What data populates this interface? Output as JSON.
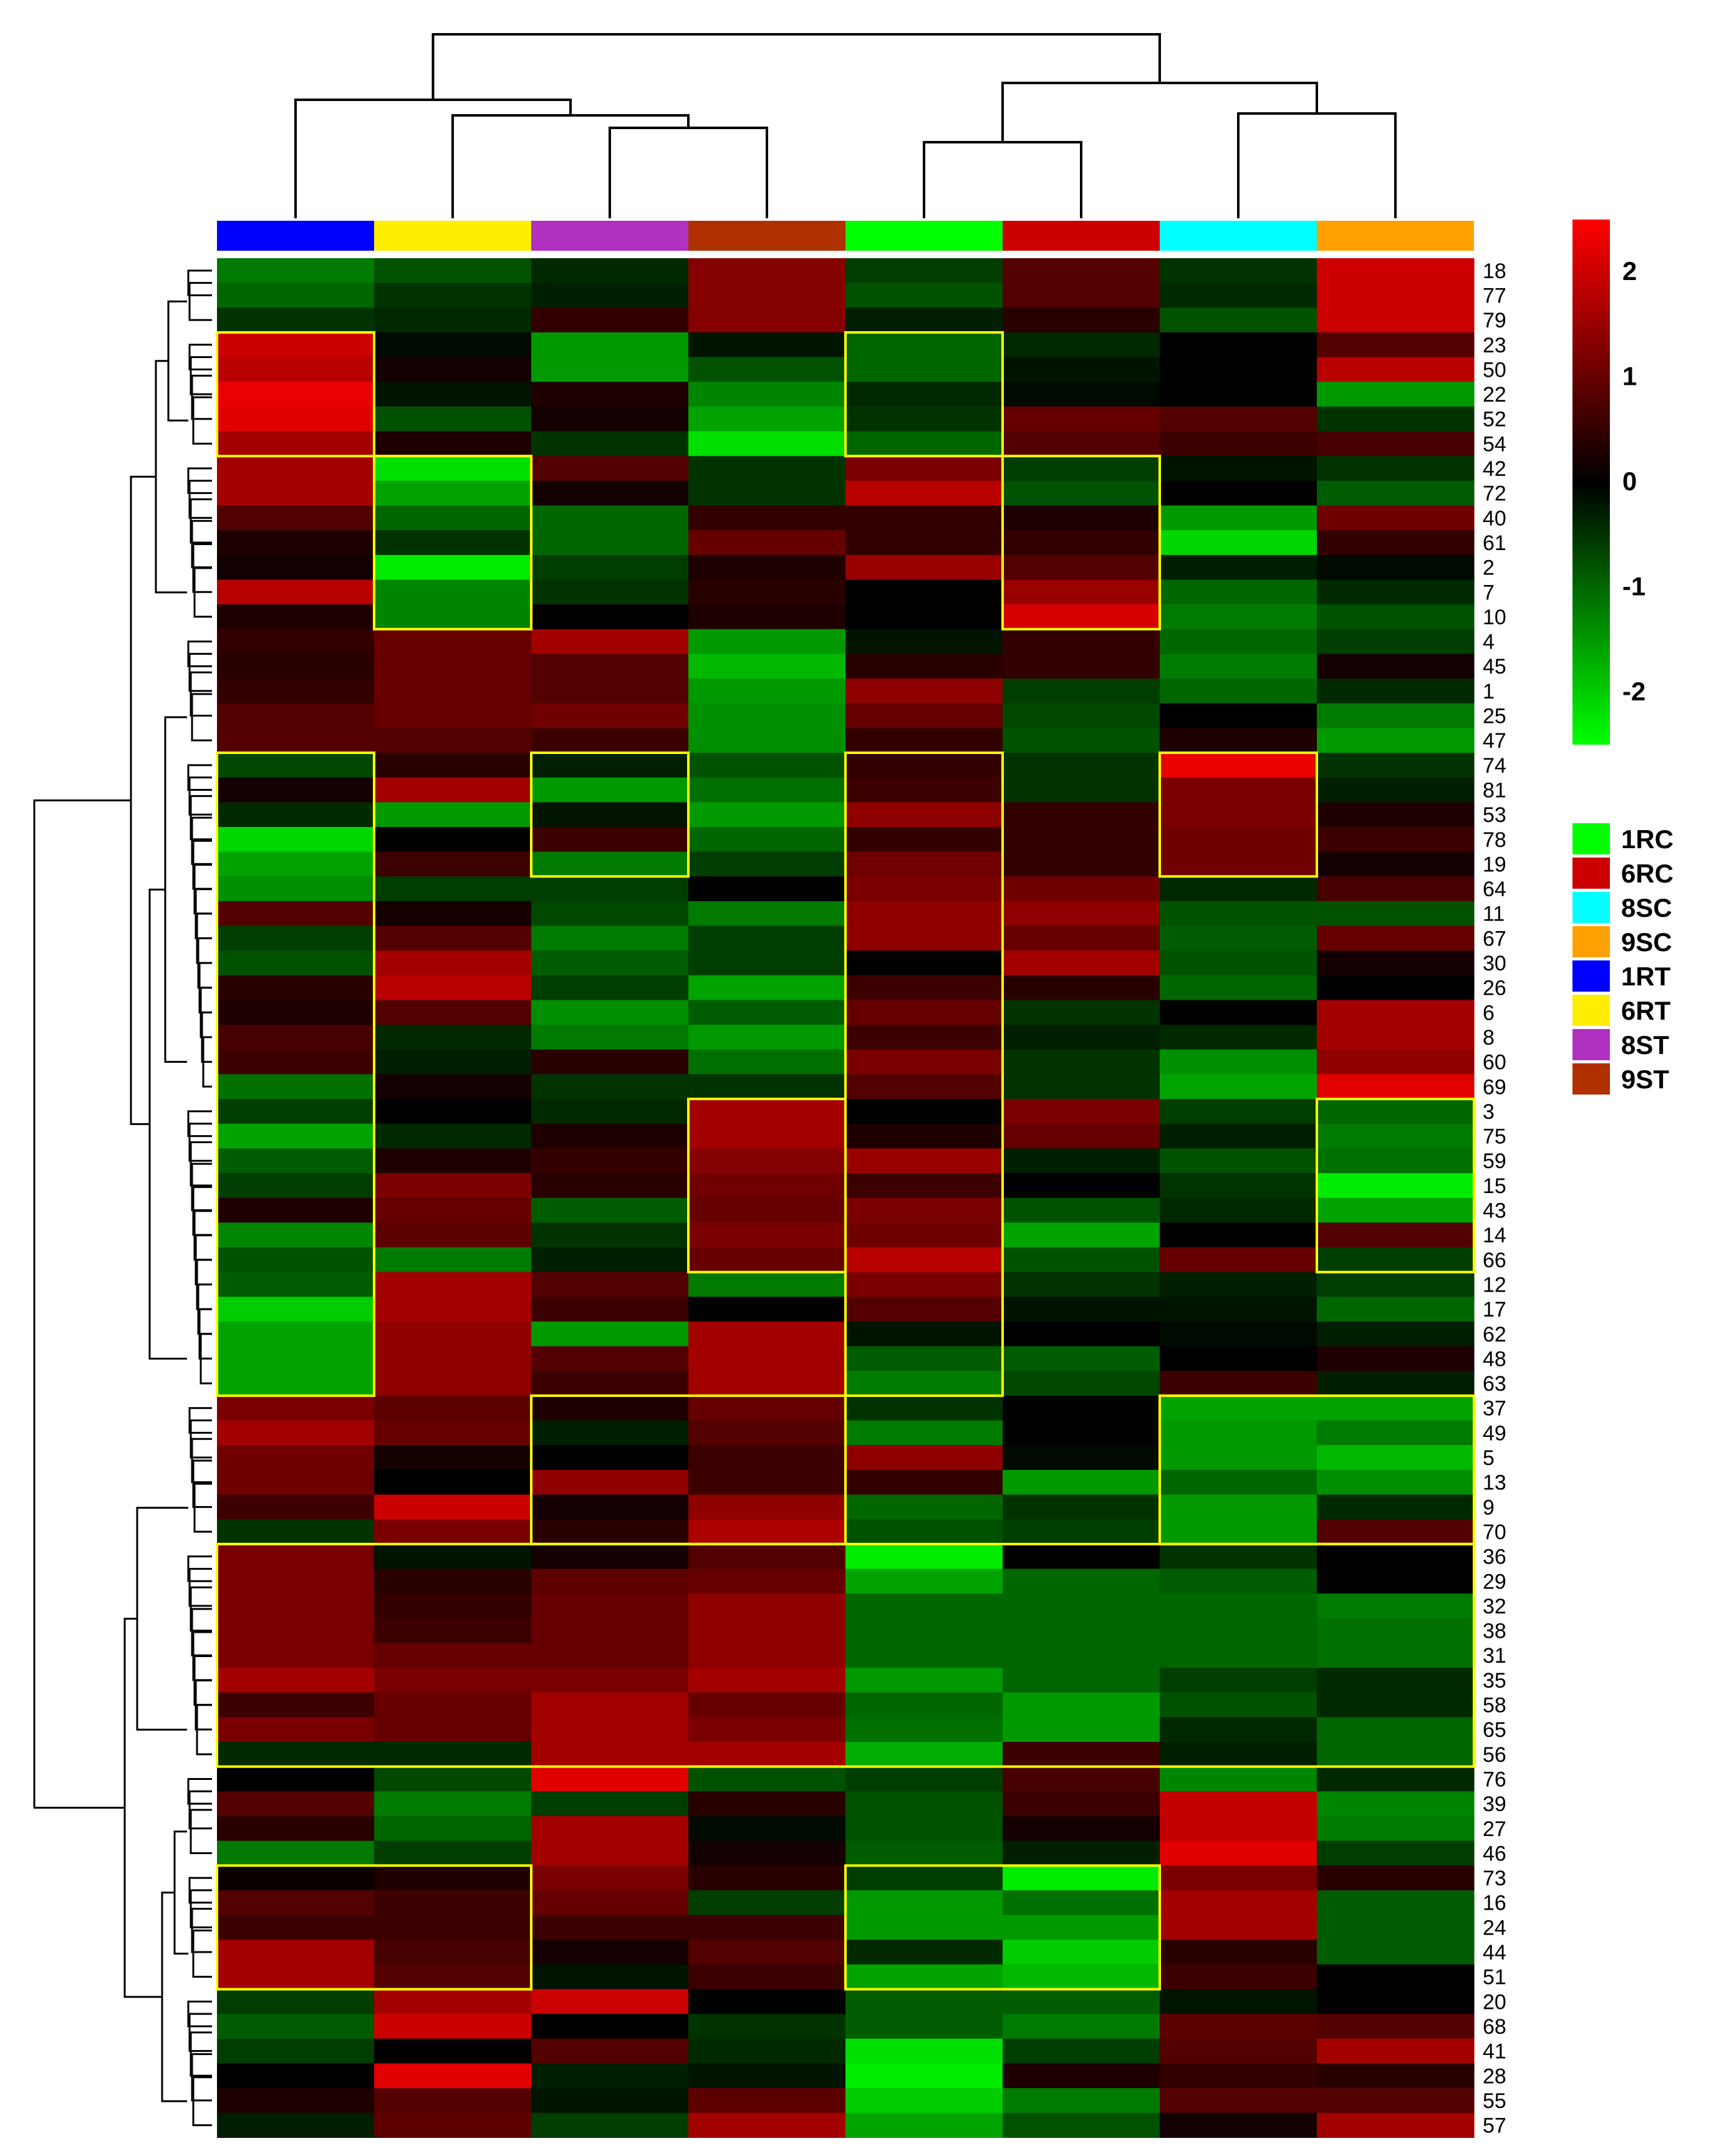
{
  "chart_data": {
    "type": "heatmap",
    "title": "",
    "xlabel": "",
    "ylabel": "",
    "colorscale": {
      "min": -2.5,
      "max": 2.5,
      "low_color": "#00ff00",
      "mid_color": "#000000",
      "high_color": "#ff0000",
      "ticks": [
        {
          "value": 2,
          "label": "2"
        },
        {
          "value": 1,
          "label": "1"
        },
        {
          "value": 0,
          "label": "0"
        },
        {
          "value": -1,
          "label": "-1"
        },
        {
          "value": -2,
          "label": "-2"
        }
      ]
    },
    "columns": [
      {
        "sample": "1RT",
        "color": "#0000ff"
      },
      {
        "sample": "6RT",
        "color": "#ffee00"
      },
      {
        "sample": "8ST",
        "color": "#b030c0"
      },
      {
        "sample": "9ST",
        "color": "#b03000"
      },
      {
        "sample": "1RC",
        "color": "#00ff00"
      },
      {
        "sample": "6RC",
        "color": "#cc0000"
      },
      {
        "sample": "8SC",
        "color": "#00ffff"
      },
      {
        "sample": "9SC",
        "color": "#ffa000"
      }
    ],
    "legend": [
      {
        "label": "1RC",
        "color": "#00ff00"
      },
      {
        "label": "6RC",
        "color": "#cc0000"
      },
      {
        "label": "8SC",
        "color": "#00ffff"
      },
      {
        "label": "9SC",
        "color": "#ffa000"
      },
      {
        "label": "1RT",
        "color": "#0000ff"
      },
      {
        "label": "6RT",
        "color": "#ffee00"
      },
      {
        "label": "8ST",
        "color": "#b030c0"
      },
      {
        "label": "9ST",
        "color": "#b03000"
      }
    ],
    "rows": [
      "18",
      "77",
      "79",
      "23",
      "50",
      "22",
      "52",
      "54",
      "42",
      "72",
      "40",
      "61",
      "2",
      "7",
      "10",
      "4",
      "45",
      "1",
      "25",
      "47",
      "74",
      "81",
      "53",
      "78",
      "19",
      "64",
      "11",
      "67",
      "30",
      "26",
      "6",
      "8",
      "60",
      "69",
      "3",
      "75",
      "59",
      "15",
      "43",
      "14",
      "66",
      "12",
      "17",
      "62",
      "48",
      "63",
      "37",
      "49",
      "5",
      "13",
      "9",
      "70",
      "36",
      "29",
      "32",
      "38",
      "31",
      "35",
      "58",
      "65",
      "56",
      "76",
      "39",
      "27",
      "46",
      "73",
      "16",
      "24",
      "44",
      "51",
      "20",
      "68",
      "41",
      "28",
      "55",
      "57"
    ],
    "values": [
      [
        -1.2,
        -0.8,
        -0.4,
        1.3,
        -0.6,
        0.8,
        -0.5,
        2.0
      ],
      [
        -1.0,
        -0.5,
        -0.3,
        1.3,
        -0.8,
        0.8,
        -0.4,
        2.0
      ],
      [
        -0.5,
        -0.4,
        0.5,
        1.3,
        -0.3,
        0.4,
        -0.8,
        2.0
      ],
      [
        2.0,
        -0.1,
        -1.5,
        -0.2,
        -1.0,
        -0.4,
        0.0,
        0.8
      ],
      [
        1.8,
        0.2,
        -1.5,
        -0.8,
        -1.0,
        -0.2,
        0.0,
        1.8
      ],
      [
        2.3,
        -0.2,
        0.3,
        -1.3,
        -0.4,
        -0.1,
        0.0,
        -1.5
      ],
      [
        2.2,
        -0.8,
        0.2,
        -1.6,
        -0.5,
        1.0,
        0.8,
        -0.5
      ],
      [
        1.6,
        0.3,
        -0.5,
        -2.2,
        -1.0,
        0.8,
        0.6,
        0.7
      ],
      [
        1.6,
        -2.2,
        0.8,
        -0.5,
        1.2,
        -0.6,
        -0.2,
        -0.5
      ],
      [
        1.6,
        -1.6,
        0.2,
        -0.5,
        1.8,
        -0.8,
        0.0,
        -0.9
      ],
      [
        0.8,
        -1.0,
        -1.0,
        0.5,
        0.5,
        0.3,
        -1.5,
        1.1
      ],
      [
        0.3,
        -0.5,
        -1.0,
        1.0,
        0.5,
        0.5,
        -2.1,
        0.5
      ],
      [
        0.2,
        -2.3,
        -0.6,
        0.3,
        1.5,
        0.8,
        -0.3,
        -0.1
      ],
      [
        1.8,
        -1.3,
        -0.5,
        0.4,
        0.0,
        1.5,
        -1.0,
        -0.4
      ],
      [
        0.3,
        -1.3,
        0.0,
        0.3,
        0.0,
        2.1,
        -1.2,
        -0.8
      ],
      [
        0.5,
        1.0,
        1.6,
        -1.5,
        -0.2,
        0.5,
        -1.0,
        -0.6
      ],
      [
        0.4,
        1.0,
        0.8,
        -1.8,
        0.4,
        0.5,
        -1.2,
        0.2
      ],
      [
        0.5,
        1.0,
        0.8,
        -1.5,
        1.4,
        -0.6,
        -1.0,
        -0.4
      ],
      [
        0.8,
        1.0,
        1.1,
        -1.4,
        1.0,
        -0.7,
        0.0,
        -1.2
      ],
      [
        0.8,
        0.8,
        0.6,
        -1.4,
        0.5,
        -0.8,
        0.3,
        -1.5
      ],
      [
        -0.7,
        0.4,
        -0.3,
        -0.8,
        0.5,
        -0.5,
        2.3,
        -0.5
      ],
      [
        0.2,
        1.6,
        -1.5,
        -1.1,
        0.6,
        -0.5,
        1.2,
        -0.3
      ],
      [
        -0.4,
        -1.5,
        -0.2,
        -1.5,
        1.4,
        0.5,
        1.2,
        0.3
      ],
      [
        -2.1,
        0.0,
        0.6,
        -1.0,
        0.5,
        0.5,
        1.1,
        0.6
      ],
      [
        -1.6,
        0.6,
        -1.2,
        -0.6,
        1.1,
        0.5,
        1.1,
        0.2
      ],
      [
        -1.4,
        -0.6,
        -0.6,
        0.0,
        1.2,
        1.1,
        -0.4,
        0.7
      ],
      [
        0.8,
        0.2,
        -0.7,
        -1.2,
        1.4,
        1.4,
        -0.8,
        -0.8
      ],
      [
        -0.6,
        0.8,
        -1.2,
        -0.6,
        1.4,
        1.0,
        -0.9,
        1.0
      ],
      [
        -0.8,
        1.6,
        -0.9,
        -0.6,
        0.0,
        1.6,
        -0.8,
        0.2
      ],
      [
        0.4,
        1.8,
        -0.6,
        -1.6,
        0.6,
        0.4,
        -1.0,
        0.0
      ],
      [
        0.3,
        0.8,
        -1.4,
        -0.9,
        1.0,
        -0.5,
        0.0,
        1.6
      ],
      [
        0.7,
        -0.4,
        -1.2,
        -1.5,
        0.6,
        -0.3,
        -0.4,
        1.6
      ],
      [
        0.6,
        -0.3,
        0.4,
        -1.1,
        1.2,
        -0.5,
        -1.4,
        1.4
      ],
      [
        -1.1,
        0.2,
        -0.5,
        -0.5,
        0.8,
        -0.5,
        -1.6,
        2.2
      ],
      [
        -0.6,
        0.0,
        -0.4,
        1.6,
        0.0,
        1.2,
        -0.6,
        -1.0
      ],
      [
        -1.6,
        -0.4,
        0.3,
        1.6,
        0.3,
        1.0,
        -0.3,
        -1.2
      ],
      [
        -0.9,
        0.3,
        0.5,
        1.3,
        1.5,
        -0.3,
        -0.8,
        -1.1
      ],
      [
        -0.6,
        1.2,
        0.4,
        1.1,
        0.6,
        0.0,
        -0.5,
        -2.3
      ],
      [
        0.3,
        1.0,
        -0.9,
        1.0,
        1.2,
        -0.8,
        -0.4,
        -1.6
      ],
      [
        -1.3,
        0.9,
        -0.5,
        1.2,
        1.1,
        -1.6,
        0.0,
        0.8
      ],
      [
        -0.8,
        -1.2,
        -0.3,
        1.0,
        1.8,
        -0.8,
        1.0,
        -0.6
      ],
      [
        -0.9,
        1.6,
        0.8,
        -1.2,
        1.2,
        -0.5,
        -0.3,
        -0.6
      ],
      [
        -2.0,
        1.6,
        0.6,
        0.0,
        0.8,
        -0.2,
        -0.2,
        -1.0
      ],
      [
        -1.6,
        1.4,
        -1.5,
        1.6,
        -0.2,
        0.0,
        -0.1,
        -0.3
      ],
      [
        -1.6,
        1.4,
        0.8,
        1.6,
        -0.9,
        -0.9,
        0.0,
        0.3
      ],
      [
        -1.6,
        1.4,
        0.6,
        1.6,
        -1.2,
        -0.7,
        0.6,
        -0.3
      ],
      [
        1.2,
        0.9,
        0.3,
        1.0,
        -0.5,
        0.0,
        -1.6,
        -1.6
      ],
      [
        1.6,
        1.0,
        -0.3,
        0.8,
        -1.2,
        0.0,
        -1.5,
        -1.2
      ],
      [
        1.1,
        0.2,
        0.0,
        0.6,
        1.4,
        -0.1,
        -1.5,
        -1.8
      ],
      [
        1.1,
        0.0,
        1.4,
        0.6,
        0.5,
        -1.5,
        -1.0,
        -1.4
      ],
      [
        0.6,
        2.0,
        0.2,
        1.4,
        -1.0,
        -0.5,
        -1.5,
        -0.4
      ],
      [
        -0.5,
        1.2,
        0.4,
        1.7,
        -0.8,
        -0.6,
        -1.5,
        0.8
      ],
      [
        1.2,
        -0.2,
        0.2,
        0.8,
        -2.3,
        0.0,
        -0.5,
        0.0
      ],
      [
        1.2,
        0.4,
        0.9,
        1.0,
        -1.6,
        -1.0,
        -0.9,
        0.0
      ],
      [
        1.2,
        0.5,
        1.0,
        1.4,
        -1.0,
        -1.0,
        -1.0,
        -1.2
      ],
      [
        1.2,
        0.6,
        1.0,
        1.4,
        -1.0,
        -1.0,
        -1.0,
        -1.1
      ],
      [
        1.2,
        1.0,
        1.0,
        1.4,
        -1.0,
        -1.0,
        -1.0,
        -1.1
      ],
      [
        1.6,
        1.2,
        1.2,
        1.6,
        -1.5,
        -1.0,
        -0.6,
        -0.4
      ],
      [
        0.6,
        1.0,
        1.6,
        1.0,
        -1.0,
        -1.5,
        -0.8,
        -0.4
      ],
      [
        1.2,
        1.0,
        1.6,
        1.2,
        -1.1,
        -1.5,
        -0.4,
        -1.0
      ],
      [
        -0.4,
        -0.4,
        1.6,
        1.6,
        -1.7,
        0.6,
        -0.3,
        -1.0
      ],
      [
        0.0,
        -0.7,
        2.2,
        -0.8,
        -0.6,
        0.7,
        -1.3,
        -0.4
      ],
      [
        0.8,
        -1.2,
        -0.6,
        0.4,
        -0.8,
        0.6,
        1.9,
        -1.3
      ],
      [
        0.4,
        -1.0,
        1.6,
        -0.1,
        -0.8,
        0.2,
        1.9,
        -1.2
      ],
      [
        -1.2,
        -0.6,
        1.6,
        0.2,
        -0.9,
        -0.3,
        2.2,
        -0.6
      ],
      [
        0.1,
        0.3,
        1.2,
        0.4,
        -0.6,
        -2.3,
        1.2,
        0.4
      ],
      [
        0.8,
        0.6,
        1.0,
        -0.6,
        -1.5,
        -1.1,
        1.6,
        -0.9
      ],
      [
        0.6,
        0.6,
        0.6,
        0.6,
        -1.5,
        -1.5,
        1.6,
        -0.9
      ],
      [
        1.6,
        0.7,
        0.2,
        0.8,
        -0.4,
        -2.0,
        0.4,
        -0.9
      ],
      [
        1.6,
        0.8,
        -0.2,
        0.6,
        -1.6,
        -1.8,
        0.6,
        0.0
      ],
      [
        -0.6,
        1.6,
        2.0,
        0.0,
        -0.9,
        -0.9,
        -0.2,
        0.0
      ],
      [
        -0.9,
        2.0,
        0.0,
        -0.5,
        -0.9,
        -1.2,
        0.9,
        0.8
      ],
      [
        -0.6,
        0.0,
        0.8,
        -0.4,
        -2.2,
        -0.6,
        0.8,
        1.6
      ],
      [
        0.0,
        2.2,
        -0.3,
        -0.2,
        -2.3,
        0.3,
        0.5,
        0.4
      ],
      [
        0.3,
        0.8,
        -0.2,
        0.9,
        -2.0,
        -1.2,
        0.8,
        0.8
      ],
      [
        -0.3,
        0.9,
        -0.6,
        1.6,
        -1.6,
        -0.8,
        0.2,
        1.6
      ]
    ],
    "highlight_boxes": [
      {
        "rows": [
          "23",
          "54"
        ],
        "columns": [
          "1RT",
          "1RT"
        ]
      },
      {
        "rows": [
          "23",
          "54"
        ],
        "columns": [
          "1RC",
          "1RC"
        ]
      },
      {
        "rows": [
          "42",
          "10"
        ],
        "columns": [
          "6RT",
          "6RT"
        ]
      },
      {
        "rows": [
          "42",
          "10"
        ],
        "columns": [
          "6RC",
          "6RC"
        ]
      },
      {
        "rows": [
          "74",
          "63"
        ],
        "columns": [
          "1RT",
          "1RT"
        ]
      },
      {
        "rows": [
          "74",
          "19"
        ],
        "columns": [
          "8ST",
          "8ST"
        ]
      },
      {
        "rows": [
          "74",
          "63"
        ],
        "columns": [
          "1RC",
          "1RC"
        ]
      },
      {
        "rows": [
          "74",
          "19"
        ],
        "columns": [
          "8SC",
          "8SC"
        ]
      },
      {
        "rows": [
          "3",
          "66"
        ],
        "columns": [
          "9ST",
          "9ST"
        ]
      },
      {
        "rows": [
          "3",
          "66"
        ],
        "columns": [
          "9SC",
          "9SC"
        ]
      },
      {
        "rows": [
          "37",
          "70"
        ],
        "columns": [
          "8ST",
          "9ST"
        ]
      },
      {
        "rows": [
          "37",
          "70"
        ],
        "columns": [
          "8SC",
          "9SC"
        ]
      },
      {
        "rows": [
          "36",
          "56"
        ],
        "columns": [
          "1RT",
          "9SC"
        ]
      },
      {
        "rows": [
          "73",
          "51"
        ],
        "columns": [
          "1RT",
          "6RT"
        ]
      },
      {
        "rows": [
          "73",
          "51"
        ],
        "columns": [
          "1RC",
          "6RC"
        ]
      }
    ],
    "column_dendrogram": "((1RT,(6RT,(8ST,9ST))),((1RC,6RC),(8SC,9SC)))",
    "row_dendrogram": true,
    "grid": false,
    "legend_placement": "right"
  }
}
